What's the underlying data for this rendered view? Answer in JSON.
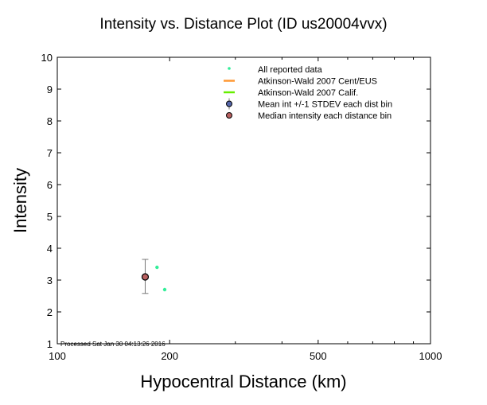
{
  "chart_data": {
    "type": "scatter",
    "title": "Intensity vs. Distance Plot (ID us20004vvx)",
    "xlabel": "Hypocentral Distance (km)",
    "ylabel": "Intensity",
    "xscale": "log",
    "xlim": [
      100,
      1000
    ],
    "ylim": [
      1,
      10
    ],
    "xticks": [
      100,
      200,
      500,
      1000
    ],
    "xtick_labels": [
      "100",
      "200",
      "500",
      "1000"
    ],
    "yticks": [
      1,
      2,
      3,
      4,
      5,
      6,
      7,
      8,
      9,
      10
    ],
    "ytick_labels": [
      "1",
      "2",
      "3",
      "4",
      "5",
      "6",
      "7",
      "8",
      "9",
      "10"
    ],
    "grid": false,
    "legend_position": "top-right",
    "legend": [
      {
        "label": "All reported data",
        "color": "#33ee99",
        "marker": "dot"
      },
      {
        "label": "Atkinson-Wald 2007 Cent/EUS",
        "color": "#ff9933",
        "marker": "line"
      },
      {
        "label": "Atkinson-Wald 2007 Calif.",
        "color": "#66ee00",
        "marker": "line"
      },
      {
        "label": "Mean int +/-1 STDEV each dist bin",
        "color": "#5566aa",
        "marker": "circle-errorbar"
      },
      {
        "label": "Median intensity each distance bin",
        "color": "#b86060",
        "marker": "circle"
      }
    ],
    "series": [
      {
        "name": "All reported data",
        "x": [
          185,
          194
        ],
        "y": [
          3.4,
          2.7
        ]
      },
      {
        "name": "Mean int +/-1 STDEV each dist bin",
        "x": [
          172
        ],
        "y": [
          3.1
        ],
        "err_low": [
          2.58
        ],
        "err_high": [
          3.65
        ]
      },
      {
        "name": "Median intensity each distance bin",
        "x": [
          172
        ],
        "y": [
          3.1
        ]
      }
    ],
    "annotation": "Processed Sat Jan 30 04:13:26 2016"
  }
}
